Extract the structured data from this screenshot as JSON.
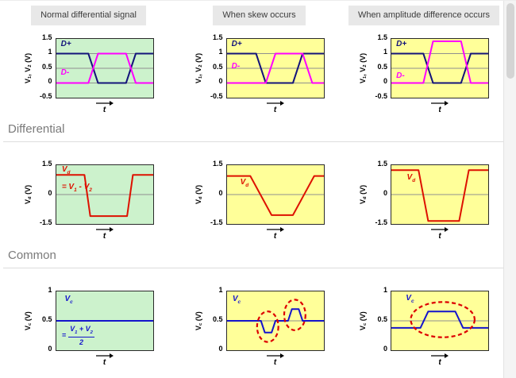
{
  "headers": [
    "Normal differential signal",
    "When skew occurs",
    "When amplitude difference occurs"
  ],
  "section_labels": {
    "differential": "Differential",
    "common": "Common"
  },
  "colors": {
    "green_bg": "#ccf2cc",
    "yellow_bg": "#ffff99",
    "dplus": "#14147a",
    "dminus": "#ff00ff",
    "vd": "#dd1100",
    "vc": "#1414cc",
    "ellipse": "#dd0000",
    "grid": "#8f8f8f",
    "header_bg": "#e8e8e8"
  },
  "chart_data": [
    {
      "id": "input-normal",
      "type": "line",
      "bg": "green_bg",
      "ylabel": "V_{1}, V_{2} (V)",
      "xlabel": "t",
      "ylim": [
        -0.5,
        1.5
      ],
      "yticks": [
        1.5,
        1,
        0.5,
        0,
        -0.5
      ],
      "gridlines": [
        1,
        0.5,
        0
      ],
      "series": [
        {
          "name": "D+",
          "color_key": "dplus",
          "x": [
            0,
            33,
            43,
            72,
            82,
            100
          ],
          "y": [
            1,
            1,
            0,
            0,
            1,
            1
          ]
        },
        {
          "name": "D-",
          "color_key": "dminus",
          "x": [
            0,
            33,
            43,
            72,
            82,
            100
          ],
          "y": [
            0,
            0,
            1,
            1,
            0,
            0
          ]
        }
      ],
      "labels": [
        {
          "text": "D+",
          "x": 5,
          "y": 1.28,
          "color_key": "dplus"
        },
        {
          "text": "D-",
          "x": 5,
          "y": 0.3,
          "color_key": "dminus"
        }
      ]
    },
    {
      "id": "input-skew",
      "type": "line",
      "bg": "yellow_bg",
      "ylabel": "V_{1}, V_{2} (V)",
      "xlabel": "t",
      "ylim": [
        -0.5,
        1.5
      ],
      "yticks": [
        1.5,
        1,
        0.5,
        0,
        -0.5
      ],
      "gridlines": [
        1,
        0.5,
        0
      ],
      "series": [
        {
          "name": "D+",
          "color_key": "dplus",
          "x": [
            0,
            30,
            40,
            68,
            78,
            100
          ],
          "y": [
            1,
            1,
            0,
            0,
            1,
            1
          ]
        },
        {
          "name": "D-",
          "color_key": "dminus",
          "x": [
            0,
            40,
            50,
            78,
            88,
            100
          ],
          "y": [
            0,
            0,
            1,
            1,
            0,
            0
          ]
        }
      ],
      "labels": [
        {
          "text": "D+",
          "x": 5,
          "y": 1.28,
          "color_key": "dplus"
        },
        {
          "text": "D-",
          "x": 5,
          "y": 0.52,
          "color_key": "dminus"
        }
      ]
    },
    {
      "id": "input-amplitude",
      "type": "line",
      "bg": "yellow_bg",
      "ylabel": "V_{1}, V_{2} (V)",
      "xlabel": "t",
      "ylim": [
        -0.5,
        1.5
      ],
      "yticks": [
        1.5,
        1,
        0.5,
        0,
        -0.5
      ],
      "gridlines": [
        1,
        0.5,
        0
      ],
      "series": [
        {
          "name": "D+",
          "color_key": "dplus",
          "x": [
            0,
            33,
            43,
            72,
            82,
            100
          ],
          "y": [
            1,
            1,
            0,
            0,
            1,
            1
          ]
        },
        {
          "name": "D-",
          "color_key": "dminus",
          "x": [
            0,
            33,
            43,
            72,
            82,
            100
          ],
          "y": [
            0,
            0,
            1.42,
            1.42,
            0,
            0
          ]
        }
      ],
      "labels": [
        {
          "text": "D+",
          "x": 5,
          "y": 1.28,
          "color_key": "dplus"
        },
        {
          "text": "D-",
          "x": 5,
          "y": 0.2,
          "color_key": "dminus"
        }
      ]
    },
    {
      "id": "diff-normal",
      "type": "line",
      "bg": "green_bg",
      "ylabel": "V_{d} (V)",
      "xlabel": "t",
      "ylim": [
        -1.5,
        1.5
      ],
      "yticks": [
        1.5,
        0,
        -1.5
      ],
      "gridlines": [
        0
      ],
      "series": [
        {
          "name": "Vd",
          "color_key": "vd",
          "x": [
            0,
            29,
            35,
            73,
            79,
            100
          ],
          "y": [
            1,
            1,
            -1.1,
            -1.1,
            1,
            1
          ]
        }
      ],
      "labels": [
        {
          "text": "V_{d}",
          "x": 6,
          "y": 1.22,
          "color_key": "vd"
        },
        {
          "text": "= V_{1} - V_{2}",
          "x": 6,
          "y": 0.32,
          "color_key": "vd"
        }
      ]
    },
    {
      "id": "diff-skew",
      "type": "line",
      "bg": "yellow_bg",
      "ylabel": "V_{d} (V)",
      "xlabel": "t",
      "ylim": [
        -1.5,
        1.5
      ],
      "yticks": [
        1.5,
        0,
        -1.5
      ],
      "gridlines": [
        0
      ],
      "series": [
        {
          "name": "Vd",
          "color_key": "vd",
          "x": [
            0,
            24,
            46,
            68,
            90,
            100
          ],
          "y": [
            0.95,
            0.95,
            -1.05,
            -1.05,
            0.95,
            0.95
          ]
        }
      ],
      "labels": [
        {
          "text": "V_{d}",
          "x": 14,
          "y": 0.55,
          "color_key": "vd"
        }
      ]
    },
    {
      "id": "diff-amplitude",
      "type": "line",
      "bg": "yellow_bg",
      "ylabel": "V_{d} (V)",
      "xlabel": "t",
      "ylim": [
        -1.5,
        1.5
      ],
      "yticks": [
        1.5,
        0,
        -1.5
      ],
      "gridlines": [
        0
      ],
      "series": [
        {
          "name": "Vd",
          "color_key": "vd",
          "x": [
            0,
            28,
            38,
            70,
            80,
            100
          ],
          "y": [
            1.25,
            1.25,
            -1.35,
            -1.35,
            1.25,
            1.25
          ]
        }
      ],
      "labels": [
        {
          "text": "V_{d}",
          "x": 16,
          "y": 0.8,
          "color_key": "vd"
        }
      ]
    },
    {
      "id": "common-normal",
      "type": "line",
      "bg": "green_bg",
      "ylabel": "V_{c} (V)",
      "xlabel": "t",
      "ylim": [
        0,
        1
      ],
      "yticks": [
        1,
        0.5,
        0
      ],
      "gridlines": [
        0.5
      ],
      "series": [
        {
          "name": "Vc",
          "color_key": "vc",
          "x": [
            0,
            100
          ],
          "y": [
            0.5,
            0.5
          ]
        }
      ],
      "labels": [
        {
          "text": "V_{c}",
          "x": 9,
          "y": 0.85,
          "color_key": "vc"
        }
      ],
      "fraction": {
        "eq": "=",
        "num": "V_{1} + V_{2}",
        "den": "2",
        "x": 6,
        "y": 0.28,
        "color_key": "vc"
      }
    },
    {
      "id": "common-skew",
      "type": "line",
      "bg": "yellow_bg",
      "ylabel": "V_{c} (V)",
      "xlabel": "t",
      "ylim": [
        0,
        1
      ],
      "yticks": [
        1,
        0.5,
        0
      ],
      "gridlines": [
        0.5
      ],
      "series": [
        {
          "name": "Vc",
          "color_key": "vc",
          "x": [
            0,
            35,
            39,
            46,
            50,
            63,
            67,
            74,
            78,
            100
          ],
          "y": [
            0.5,
            0.5,
            0.3,
            0.3,
            0.5,
            0.5,
            0.7,
            0.7,
            0.5,
            0.5
          ]
        }
      ],
      "labels": [
        {
          "text": "V_{c}",
          "x": 6,
          "y": 0.85,
          "color_key": "vc"
        }
      ],
      "ellipses": [
        {
          "cx": 42,
          "cy": 0.4,
          "rx": 11,
          "ry": 0.26
        },
        {
          "cx": 70,
          "cy": 0.6,
          "rx": 11,
          "ry": 0.26
        }
      ]
    },
    {
      "id": "common-amplitude",
      "type": "line",
      "bg": "yellow_bg",
      "ylabel": "V_{c} (V)",
      "xlabel": "t",
      "ylim": [
        0,
        1
      ],
      "yticks": [
        1,
        0.5,
        0
      ],
      "gridlines": [
        0.5
      ],
      "series": [
        {
          "name": "Vc",
          "color_key": "vc",
          "x": [
            0,
            30,
            38,
            66,
            74,
            100
          ],
          "y": [
            0.38,
            0.38,
            0.66,
            0.66,
            0.38,
            0.38
          ]
        }
      ],
      "labels": [
        {
          "text": "V_{c}",
          "x": 15,
          "y": 0.86,
          "color_key": "vc"
        }
      ],
      "ellipses": [
        {
          "cx": 53,
          "cy": 0.52,
          "rx": 33,
          "ry": 0.3
        }
      ]
    }
  ]
}
